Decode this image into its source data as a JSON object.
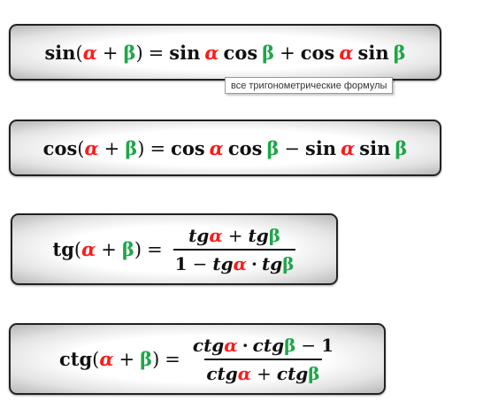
{
  "formulas": {
    "sin_sum": {
      "lhs_fn": "sin",
      "open": "(",
      "a": "α",
      "plus": "+",
      "b": "β",
      "close": ")",
      "eq": "=",
      "t1_fn1": "sin",
      "t1_a": "α",
      "t1_fn2": "cos",
      "t1_b": "β",
      "op": "+",
      "t2_fn1": "cos",
      "t2_a": "α",
      "t2_fn2": "sin",
      "t2_b": "β"
    },
    "cos_sum": {
      "lhs_fn": "cos",
      "open": "(",
      "a": "α",
      "plus": "+",
      "b": "β",
      "close": ")",
      "eq": "=",
      "t1_fn1": "cos",
      "t1_a": "α",
      "t1_fn2": "cos",
      "t1_b": "β",
      "op": "−",
      "t2_fn1": "sin",
      "t2_a": "α",
      "t2_fn2": "sin",
      "t2_b": "β"
    },
    "tg_sum": {
      "lhs_fn": "tg",
      "open": "(",
      "a": "α",
      "plus": "+",
      "b": "β",
      "close": ")",
      "eq": "=",
      "num_fn1": "tg",
      "num_a": "α",
      "num_op": "+",
      "num_fn2": "tg",
      "num_b": "β",
      "den_one": "1",
      "den_op": "−",
      "den_fn1": "tg",
      "den_a": "α",
      "den_dot": "·",
      "den_fn2": "tg",
      "den_b": "β"
    },
    "ctg_sum": {
      "lhs_fn": "ctg",
      "open": "(",
      "a": "α",
      "plus": "+",
      "b": "β",
      "close": ")",
      "eq": "=",
      "num_fn1": "ctg",
      "num_a": "α",
      "num_dot": "·",
      "num_fn2": "ctg",
      "num_b": "β",
      "num_op": "−",
      "num_one": "1",
      "den_fn1": "ctg",
      "den_a": "α",
      "den_op": "+",
      "den_fn2": "ctg",
      "den_b": "β"
    }
  },
  "tooltip": {
    "text": "все тригонометрические формулы"
  },
  "colors": {
    "alpha": "#ff1a1a",
    "beta": "#1fa64a",
    "border": "#222222"
  }
}
